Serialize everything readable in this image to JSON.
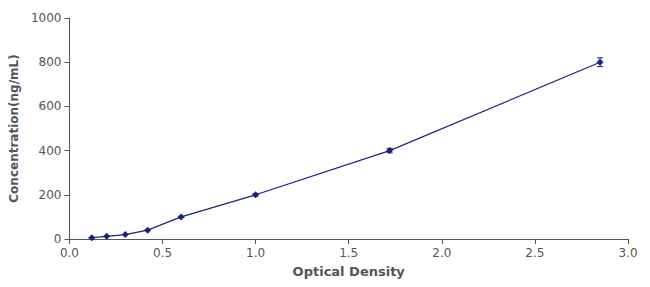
{
  "chart_data": {
    "type": "line",
    "x": [
      0.12,
      0.2,
      0.3,
      0.42,
      0.6,
      1.0,
      1.72,
      2.85
    ],
    "values": [
      6,
      12,
      20,
      40,
      100,
      200,
      400,
      800
    ],
    "errors": [
      0.15,
      0.3,
      0.5,
      1,
      2.5,
      5,
      10,
      20
    ],
    "color": "#1a237e",
    "marker": "diamond",
    "xlabel": "Optical Density",
    "ylabel": "Concentration(ng/mL)",
    "xlim": [
      0.0,
      3.0
    ],
    "ylim": [
      0,
      1000
    ],
    "xticks": [
      {
        "value": 0,
        "label": "0.0"
      },
      0.5,
      {
        "value": 1.0,
        "label": "1.0"
      },
      1.5,
      {
        "value": 2.0,
        "label": "2.0"
      },
      2.5,
      {
        "value": 3.0,
        "label": "3.0"
      }
    ],
    "yticks": [
      0,
      200,
      400,
      600,
      800,
      1000
    ],
    "grid": false
  }
}
